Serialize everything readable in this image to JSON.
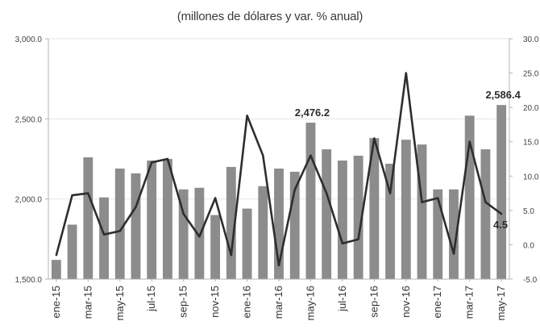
{
  "chart_data": {
    "type": "bar",
    "title": "",
    "subtitle": "(millones de dólares y var. % anual)",
    "categories": [
      "ene-15",
      "feb-15",
      "mar-15",
      "abr-15",
      "may-15",
      "jun-15",
      "jul-15",
      "ago-15",
      "sep-15",
      "oct-15",
      "nov-15",
      "dic-15",
      "ene-16",
      "feb-16",
      "mar-16",
      "abr-16",
      "may-16",
      "jun-16",
      "jul-16",
      "ago-16",
      "sep-16",
      "oct-16",
      "nov-16",
      "dic-16",
      "ene-17",
      "feb-17",
      "mar-17",
      "abr-17",
      "may-17"
    ],
    "x_tick_labels": [
      "ene-15",
      "mar-15",
      "may-15",
      "jul-15",
      "sep-15",
      "nov-15",
      "ene-16",
      "mar-16",
      "may-16",
      "jul-16",
      "sep-16",
      "nov-16",
      "ene-17",
      "mar-17",
      "may-17"
    ],
    "series": [
      {
        "type": "bar",
        "axis": "left",
        "color": "#8c8c8c",
        "values": [
          1620,
          1840,
          2260,
          2010,
          2190,
          2160,
          2240,
          2250,
          2060,
          2070,
          1900,
          2200,
          1940,
          2080,
          2190,
          2170,
          2476.2,
          2310,
          2240,
          2270,
          2380,
          2220,
          2370,
          2340,
          2060,
          2060,
          2520,
          2310,
          2586.4
        ]
      },
      {
        "type": "line",
        "axis": "right",
        "color": "#2e2e2e",
        "values": [
          -1.5,
          7.2,
          7.5,
          1.5,
          2.0,
          5.5,
          12.0,
          12.5,
          4.5,
          1.2,
          6.8,
          -1.5,
          18.8,
          13.0,
          -3.0,
          8.0,
          13.0,
          7.5,
          0.2,
          0.8,
          15.5,
          7.5,
          25.0,
          6.2,
          6.8,
          -1.3,
          15.0,
          6.2,
          4.5
        ]
      }
    ],
    "y_left": {
      "lim": [
        1500,
        3000
      ],
      "ticks": [
        "1,500.0",
        "2,000.0",
        "2,500.0",
        "3,000.0"
      ]
    },
    "y_right": {
      "lim": [
        -5,
        30
      ],
      "ticks": [
        "-5.0",
        "0.0",
        "5.0",
        "10.0",
        "15.0",
        "20.0",
        "25.0",
        "30.0"
      ]
    },
    "annotations": [
      {
        "text": "2,476.2",
        "category": "may-16"
      },
      {
        "text": "2,586.4",
        "category": "may-17"
      },
      {
        "text": "4.5",
        "category": "may-17"
      }
    ],
    "grid": "horizontal",
    "legend": "none",
    "xlabel": "",
    "ylabel": ""
  }
}
